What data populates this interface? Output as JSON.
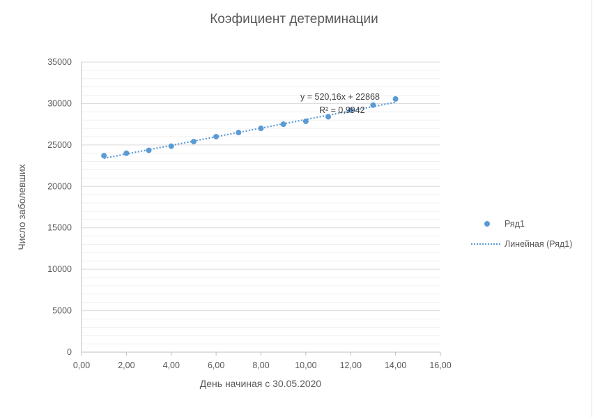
{
  "chart_data": {
    "type": "scatter",
    "title": "Коэфициент детерминации",
    "xlabel": "День начиная с 30.05.2020",
    "ylabel": "Число заболевших",
    "xlim": [
      0,
      16
    ],
    "ylim": [
      0,
      35000
    ],
    "x_ticks": [
      "0,00",
      "2,00",
      "4,00",
      "6,00",
      "8,00",
      "10,00",
      "12,00",
      "14,00",
      "16,00"
    ],
    "y_ticks": [
      "0",
      "5000",
      "10000",
      "15000",
      "20000",
      "25000",
      "30000",
      "35000"
    ],
    "grid": true,
    "legend_position": "right",
    "series": [
      {
        "name": "Ряд1",
        "color": "#5b9bd5",
        "x": [
          1,
          2,
          3,
          4,
          5,
          6,
          7,
          8,
          9,
          10,
          11,
          12,
          13,
          14
        ],
        "y": [
          23700,
          24000,
          24350,
          24850,
          25400,
          26000,
          26500,
          27000,
          27500,
          27850,
          28400,
          29200,
          29800,
          30550
        ]
      }
    ],
    "trendline": {
      "name": "Линейная (Ряд1)",
      "type": "linear",
      "slope": 520.16,
      "intercept": 22868,
      "x_range": [
        1,
        14
      ],
      "equation": "y = 520,16x + 22868",
      "r_squared": "R² = 0,9942",
      "color": "#5b9bd5"
    }
  }
}
